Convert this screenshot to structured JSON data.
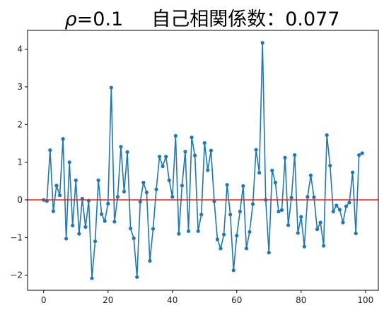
{
  "chart_data": {
    "type": "line",
    "title": "ρ=0.1　　自己相関係数：0.077",
    "title_parts": {
      "rho_symbol": "ρ",
      "rho_value": "=0.1",
      "label": "自己相関係数：0.077"
    },
    "xlabel": "",
    "ylabel": "",
    "xlim": [
      -5,
      104
    ],
    "ylim": [
      -2.4,
      4.5
    ],
    "xticks": [
      0,
      20,
      40,
      60,
      80,
      100
    ],
    "yticks": [
      -2,
      -1,
      0,
      1,
      2,
      3,
      4
    ],
    "ytick_labels": [
      "−2",
      "−1",
      "0",
      "1",
      "2",
      "3",
      "4"
    ],
    "grid": false,
    "series": [
      {
        "color": "#1f77b4",
        "marker": "circle",
        "x": [
          0,
          1,
          2,
          3,
          4,
          5,
          6,
          7,
          8,
          9,
          10,
          11,
          12,
          13,
          14,
          15,
          16,
          17,
          18,
          19,
          20,
          21,
          22,
          23,
          24,
          25,
          26,
          27,
          28,
          29,
          30,
          31,
          32,
          33,
          34,
          35,
          36,
          37,
          38,
          39,
          40,
          41,
          42,
          43,
          44,
          45,
          46,
          47,
          48,
          49,
          50,
          51,
          52,
          53,
          54,
          55,
          56,
          57,
          58,
          59,
          60,
          61,
          62,
          63,
          64,
          65,
          66,
          67,
          68,
          69,
          70,
          71,
          72,
          73,
          74,
          75,
          76,
          77,
          78,
          79,
          80,
          81,
          82,
          83,
          84,
          85,
          86,
          87,
          88,
          89,
          90,
          91,
          92,
          93,
          94,
          95,
          96,
          97,
          98,
          99
        ],
        "values": [
          0.0,
          -0.03,
          1.32,
          -0.3,
          0.38,
          0.12,
          1.62,
          -1.03,
          1.0,
          -0.68,
          0.52,
          -0.9,
          0.03,
          -0.72,
          -0.02,
          -2.08,
          -1.1,
          0.52,
          -0.38,
          -0.56,
          -0.1,
          2.98,
          -0.58,
          0.08,
          1.41,
          0.22,
          1.27,
          -0.76,
          -1.02,
          -2.05,
          -0.05,
          0.46,
          0.2,
          -1.62,
          -0.77,
          0.28,
          1.15,
          0.89,
          1.15,
          0.52,
          0.08,
          1.7,
          -0.9,
          0.38,
          1.28,
          -0.83,
          1.66,
          1.18,
          -0.83,
          -0.39,
          1.51,
          0.79,
          1.31,
          -0.04,
          -1.05,
          -1.29,
          -0.92,
          0.4,
          -0.39,
          -1.87,
          -0.95,
          -0.31,
          0.37,
          -1.29,
          -0.85,
          -0.11,
          1.33,
          0.72,
          4.17,
          0.0,
          -1.4,
          0.78,
          0.46,
          -0.31,
          -0.27,
          1.12,
          -0.67,
          0.06,
          1.19,
          -0.88,
          -0.45,
          -1.24,
          0.08,
          0.65,
          0.07,
          -0.78,
          -0.6,
          -1.22,
          1.72,
          0.91,
          -0.31,
          -0.15,
          -0.26,
          -0.6,
          -0.17,
          -0.07,
          0.73,
          -0.89,
          1.19,
          1.24
        ]
      }
    ],
    "reference_lines": [
      {
        "orientation": "horizontal",
        "y": 0,
        "color": "#d62728"
      }
    ]
  }
}
